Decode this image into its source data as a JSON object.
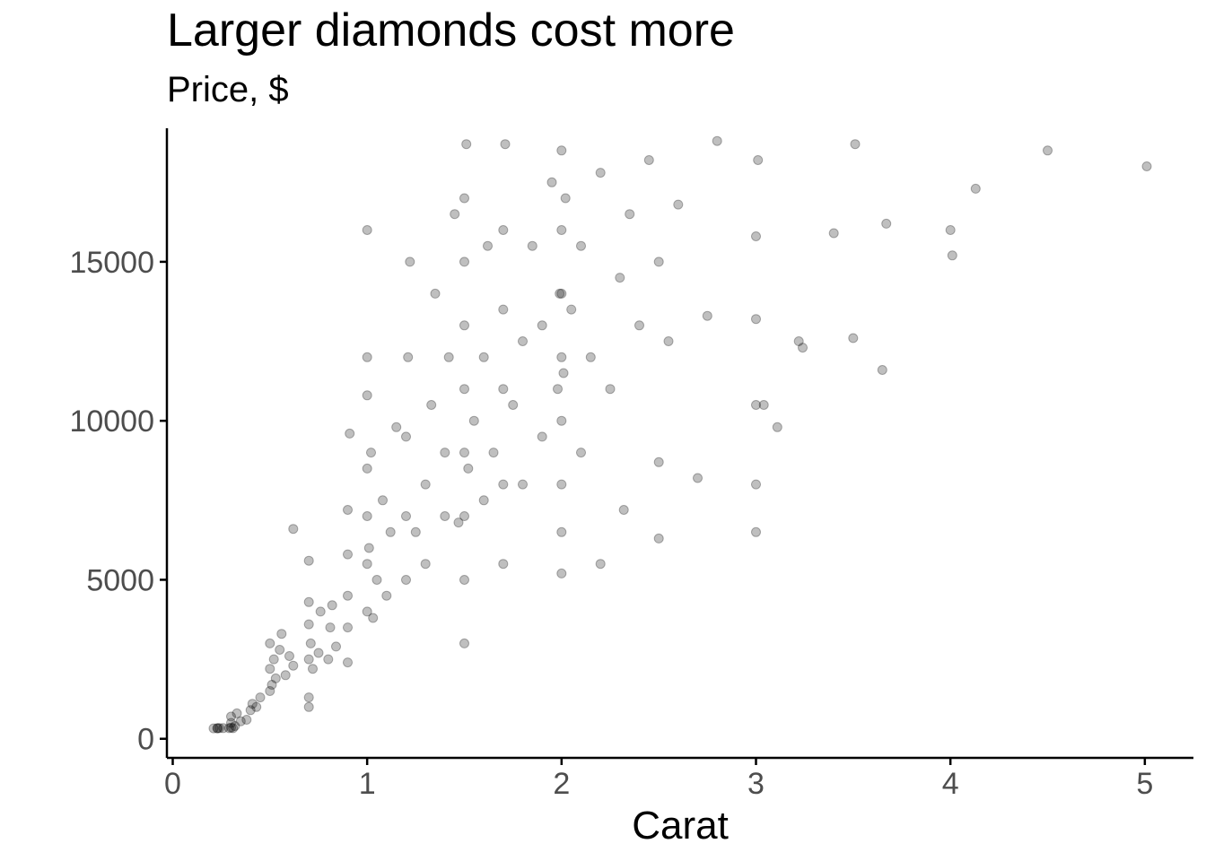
{
  "chart_data": {
    "type": "scatter",
    "title": "Larger diamonds cost more",
    "subtitle": "Price, $",
    "xlabel": "Carat",
    "ylabel": "",
    "xlim": [
      -0.03,
      5.25
    ],
    "ylim": [
      -600,
      19200
    ],
    "x_ticks": [
      0,
      1,
      2,
      3,
      4,
      5
    ],
    "y_ticks": [
      0,
      5000,
      10000,
      15000
    ],
    "grid": false,
    "point_color": "#000000",
    "point_alpha": 0.1,
    "series": [
      {
        "values": [
          [
            0.21,
            327
          ],
          [
            0.23,
            340
          ],
          [
            0.23,
            326
          ],
          [
            0.24,
            336
          ],
          [
            0.26,
            337
          ],
          [
            0.29,
            334
          ],
          [
            0.3,
            350
          ],
          [
            0.31,
            335
          ],
          [
            0.32,
            400
          ],
          [
            0.35,
            552
          ],
          [
            0.3,
            500
          ],
          [
            0.3,
            700
          ],
          [
            0.33,
            800
          ],
          [
            0.38,
            600
          ],
          [
            0.4,
            900
          ],
          [
            0.41,
            1100
          ],
          [
            0.43,
            1000
          ],
          [
            0.45,
            1300
          ],
          [
            0.5,
            1500
          ],
          [
            0.5,
            2200
          ],
          [
            0.5,
            3000
          ],
          [
            0.51,
            1700
          ],
          [
            0.52,
            2500
          ],
          [
            0.53,
            1900
          ],
          [
            0.55,
            2800
          ],
          [
            0.56,
            3300
          ],
          [
            0.58,
            2000
          ],
          [
            0.6,
            2600
          ],
          [
            0.62,
            6600
          ],
          [
            0.62,
            2300
          ],
          [
            0.7,
            1000
          ],
          [
            0.7,
            1300
          ],
          [
            0.7,
            2500
          ],
          [
            0.7,
            3600
          ],
          [
            0.7,
            4300
          ],
          [
            0.7,
            5600
          ],
          [
            0.71,
            3000
          ],
          [
            0.72,
            2200
          ],
          [
            0.75,
            2700
          ],
          [
            0.76,
            4000
          ],
          [
            0.8,
            2500
          ],
          [
            0.81,
            3500
          ],
          [
            0.82,
            4200
          ],
          [
            0.84,
            2900
          ],
          [
            0.9,
            3500
          ],
          [
            0.9,
            4500
          ],
          [
            0.9,
            5800
          ],
          [
            0.9,
            7200
          ],
          [
            0.91,
            9600
          ],
          [
            0.9,
            2400
          ],
          [
            1.0,
            4000
          ],
          [
            1.0,
            5500
          ],
          [
            1.0,
            7000
          ],
          [
            1.0,
            8500
          ],
          [
            1.0,
            10800
          ],
          [
            1.0,
            12000
          ],
          [
            1.0,
            16000
          ],
          [
            1.01,
            6000
          ],
          [
            1.02,
            9000
          ],
          [
            1.03,
            3800
          ],
          [
            1.05,
            5000
          ],
          [
            1.08,
            7500
          ],
          [
            1.1,
            4500
          ],
          [
            1.12,
            6500
          ],
          [
            1.15,
            9800
          ],
          [
            1.2,
            5000
          ],
          [
            1.2,
            7000
          ],
          [
            1.2,
            9500
          ],
          [
            1.21,
            12000
          ],
          [
            1.22,
            15000
          ],
          [
            1.25,
            6500
          ],
          [
            1.3,
            5500
          ],
          [
            1.3,
            8000
          ],
          [
            1.33,
            10500
          ],
          [
            1.35,
            14000
          ],
          [
            1.4,
            7000
          ],
          [
            1.4,
            9000
          ],
          [
            1.42,
            12000
          ],
          [
            1.45,
            16500
          ],
          [
            1.47,
            6800
          ],
          [
            1.5,
            3000
          ],
          [
            1.5,
            5000
          ],
          [
            1.5,
            7000
          ],
          [
            1.5,
            9000
          ],
          [
            1.5,
            11000
          ],
          [
            1.5,
            13000
          ],
          [
            1.5,
            15000
          ],
          [
            1.5,
            17000
          ],
          [
            1.51,
            18700
          ],
          [
            1.52,
            8500
          ],
          [
            1.55,
            10000
          ],
          [
            1.6,
            7500
          ],
          [
            1.6,
            12000
          ],
          [
            1.62,
            15500
          ],
          [
            1.65,
            9000
          ],
          [
            1.7,
            5500
          ],
          [
            1.7,
            8000
          ],
          [
            1.7,
            11000
          ],
          [
            1.7,
            13500
          ],
          [
            1.7,
            16000
          ],
          [
            1.71,
            18700
          ],
          [
            1.75,
            10500
          ],
          [
            1.8,
            8000
          ],
          [
            1.8,
            12500
          ],
          [
            1.85,
            15500
          ],
          [
            1.9,
            9500
          ],
          [
            1.9,
            13000
          ],
          [
            1.95,
            17500
          ],
          [
            1.98,
            11000
          ],
          [
            1.99,
            14000
          ],
          [
            2.0,
            5200
          ],
          [
            2.0,
            6500
          ],
          [
            2.0,
            8000
          ],
          [
            2.0,
            10000
          ],
          [
            2.0,
            12000
          ],
          [
            2.0,
            14000
          ],
          [
            2.0,
            16000
          ],
          [
            2.0,
            18500
          ],
          [
            2.01,
            11500
          ],
          [
            2.02,
            17000
          ],
          [
            2.05,
            13500
          ],
          [
            2.1,
            9000
          ],
          [
            2.1,
            15500
          ],
          [
            2.15,
            12000
          ],
          [
            2.2,
            5500
          ],
          [
            2.2,
            17800
          ],
          [
            2.25,
            11000
          ],
          [
            2.3,
            14500
          ],
          [
            2.32,
            7200
          ],
          [
            2.35,
            16500
          ],
          [
            2.4,
            13000
          ],
          [
            2.45,
            18200
          ],
          [
            2.5,
            6300
          ],
          [
            2.5,
            8700
          ],
          [
            2.5,
            15000
          ],
          [
            2.55,
            12500
          ],
          [
            2.6,
            16800
          ],
          [
            2.7,
            8200
          ],
          [
            2.75,
            13300
          ],
          [
            2.8,
            18800
          ],
          [
            3.0,
            6500
          ],
          [
            3.0,
            8000
          ],
          [
            3.0,
            10500
          ],
          [
            3.0,
            13200
          ],
          [
            3.0,
            15800
          ],
          [
            3.01,
            18200
          ],
          [
            3.04,
            10500
          ],
          [
            3.11,
            9800
          ],
          [
            3.22,
            12500
          ],
          [
            3.24,
            12300
          ],
          [
            3.4,
            15900
          ],
          [
            3.5,
            12600
          ],
          [
            3.51,
            18700
          ],
          [
            3.65,
            11600
          ],
          [
            3.67,
            16200
          ],
          [
            4.0,
            16000
          ],
          [
            4.01,
            15200
          ],
          [
            4.13,
            17300
          ],
          [
            4.5,
            18500
          ],
          [
            5.01,
            18000
          ]
        ]
      }
    ]
  }
}
